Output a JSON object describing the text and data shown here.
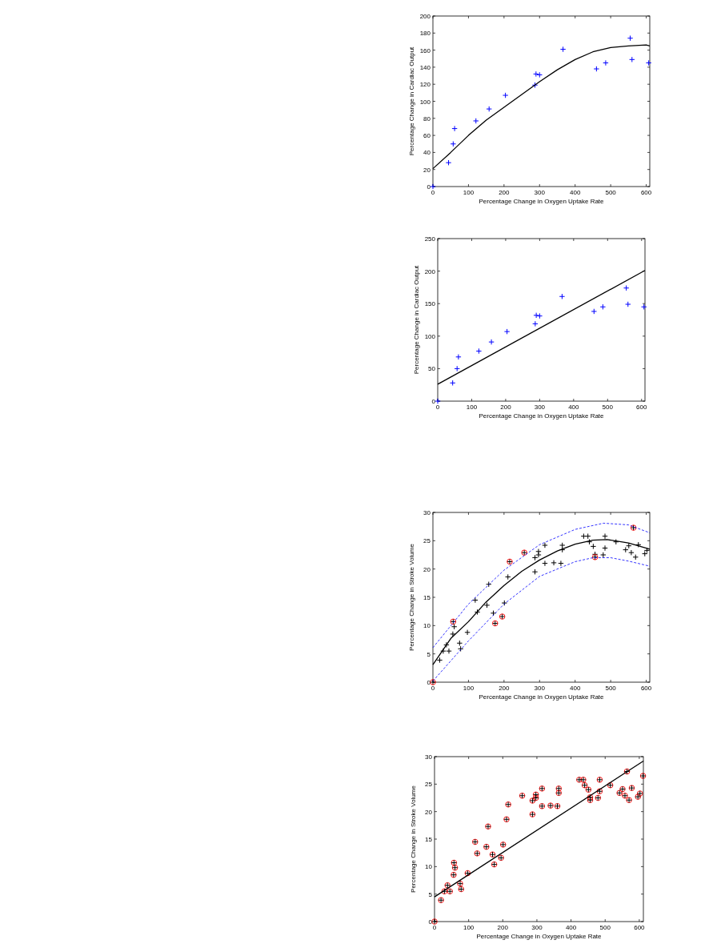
{
  "chart_data": [
    {
      "type": "scatter",
      "xlabel": "Percentage Change in Oxygen Uptake Rate",
      "ylabel": "Percentage Change in Cardiac Output",
      "xlim": [
        0,
        610
      ],
      "ylim": [
        0,
        200
      ],
      "xticks": [
        0,
        100,
        200,
        300,
        400,
        500,
        600
      ],
      "yticks": [
        0,
        20,
        40,
        60,
        80,
        100,
        120,
        140,
        160,
        180,
        200
      ],
      "grid": false,
      "series": [
        {
          "type": "scatter",
          "marker": "cross",
          "color": "#0000ff",
          "x": [
            0,
            44,
            57,
            61,
            121,
            158,
            204,
            287,
            290,
            300,
            366,
            460,
            486,
            555,
            560,
            607
          ],
          "values": [
            0,
            28,
            50,
            68,
            77,
            91,
            107,
            119,
            132,
            131,
            161,
            138,
            145,
            174,
            149,
            145
          ]
        },
        {
          "type": "line",
          "marker": "none",
          "line_style": "solid",
          "color": "#000000",
          "x": [
            0,
            50,
            100,
            150,
            200,
            250,
            300,
            350,
            400,
            450,
            500,
            550,
            600,
            610
          ],
          "values": [
            21,
            40,
            60,
            78,
            93,
            108,
            123,
            137,
            149,
            158,
            163,
            165,
            166,
            165
          ]
        }
      ]
    },
    {
      "type": "scatter",
      "xlabel": "Percentage Change in Oxygen Uptake Rate",
      "ylabel": "Percentage Change in Cardiac Output",
      "xlim": [
        0,
        610
      ],
      "ylim": [
        0,
        250
      ],
      "xticks": [
        0,
        100,
        200,
        300,
        400,
        500,
        600
      ],
      "yticks": [
        0,
        50,
        100,
        150,
        200,
        250
      ],
      "grid": false,
      "series": [
        {
          "type": "scatter",
          "marker": "cross",
          "color": "#0000ff",
          "x": [
            0,
            44,
            57,
            61,
            121,
            158,
            204,
            287,
            290,
            300,
            366,
            460,
            486,
            555,
            560,
            607
          ],
          "values": [
            0,
            28,
            50,
            68,
            77,
            91,
            107,
            119,
            132,
            131,
            161,
            138,
            145,
            174,
            149,
            145
          ]
        },
        {
          "type": "line",
          "marker": "none",
          "line_style": "solid",
          "color": "#000000",
          "x": [
            0,
            610
          ],
          "values": [
            26,
            201
          ]
        }
      ]
    },
    {
      "type": "scatter",
      "xlabel": "Percentage Change in Oxygen Uptake Rate",
      "ylabel": "Percentage Change in Stroke Volume",
      "xlim": [
        0,
        610
      ],
      "ylim": [
        0,
        30
      ],
      "xticks": [
        0,
        100,
        200,
        300,
        400,
        500,
        600
      ],
      "yticks": [
        0,
        5,
        10,
        15,
        20,
        25,
        30
      ],
      "grid": false,
      "series": [
        {
          "type": "scatter",
          "marker": "cross",
          "color": "#000000",
          "x": [
            0,
            19,
            29,
            38,
            45,
            56,
            60,
            57,
            75,
            78,
            97,
            119,
            125,
            152,
            157,
            170,
            175,
            195,
            201,
            211,
            216,
            257,
            287,
            287,
            297,
            297,
            315,
            315,
            340,
            360,
            364,
            364,
            424,
            436,
            440,
            451,
            456,
            456,
            479,
            484,
            484,
            515,
            542,
            551,
            558,
            564,
            570,
            578,
            596,
            602
          ],
          "values": [
            0,
            3.9,
            5.5,
            6.6,
            5.5,
            8.5,
            9.8,
            10.7,
            6.9,
            5.9,
            8.8,
            14.5,
            12.4,
            13.6,
            17.3,
            12.2,
            10.4,
            11.6,
            14.0,
            18.6,
            21.3,
            22.9,
            19.5,
            22.0,
            23.1,
            22.5,
            21.0,
            24.2,
            21.1,
            21.0,
            24.2,
            23.4,
            25.8,
            25.8,
            24.8,
            24.0,
            22.6,
            22.1,
            22.5,
            25.8,
            23.7,
            24.8,
            23.4,
            24.1,
            22.9,
            27.3,
            22.1,
            24.3,
            22.7,
            23.3
          ]
        },
        {
          "type": "scatter",
          "marker": "circle",
          "color": "#ff0000",
          "x": [
            0,
            57,
            175,
            195,
            216,
            257,
            456,
            564
          ],
          "values": [
            0,
            10.7,
            10.4,
            11.6,
            21.3,
            22.9,
            22.1,
            27.3
          ]
        },
        {
          "type": "line",
          "marker": "none",
          "line_style": "solid",
          "color": "#000000",
          "x": [
            0,
            50,
            100,
            150,
            200,
            250,
            300,
            350,
            400,
            450,
            490,
            550,
            610
          ],
          "values": [
            3.1,
            7.7,
            10.7,
            14.2,
            17.1,
            19.6,
            21.6,
            23.2,
            24.4,
            25.1,
            25.2,
            24.6,
            23.5
          ]
        },
        {
          "type": "line",
          "marker": "none",
          "line_style": "dashed",
          "color": "#0000ff",
          "x": [
            0,
            100,
            200,
            300,
            400,
            480,
            550,
            610
          ],
          "values": [
            6.1,
            13.8,
            19.8,
            24.3,
            27.0,
            28.1,
            27.8,
            26.4
          ]
        },
        {
          "type": "line",
          "marker": "none",
          "line_style": "dashed",
          "color": "#0000ff",
          "x": [
            0,
            100,
            200,
            300,
            400,
            450,
            500,
            550,
            610
          ],
          "values": [
            0.2,
            7.3,
            13.8,
            18.7,
            21.3,
            22.0,
            22.0,
            21.4,
            20.5
          ]
        }
      ]
    },
    {
      "type": "scatter",
      "xlabel": "Percentage Change in Oxygen Uptake Rate",
      "ylabel": "Percentage Change in Stroke Volume",
      "xlim": [
        0,
        612
      ],
      "ylim": [
        0,
        30
      ],
      "xticks": [
        0,
        100,
        200,
        300,
        400,
        500,
        600
      ],
      "yticks": [
        0,
        5,
        10,
        15,
        20,
        25,
        30
      ],
      "grid": false,
      "series": [
        {
          "type": "scatter",
          "marker": "circle",
          "color": "#ff0000",
          "x": [
            0,
            19,
            29,
            38,
            45,
            56,
            60,
            57,
            75,
            78,
            97,
            119,
            125,
            152,
            157,
            170,
            175,
            195,
            201,
            211,
            216,
            257,
            287,
            287,
            297,
            297,
            315,
            315,
            340,
            360,
            364,
            364,
            424,
            436,
            440,
            451,
            456,
            456,
            479,
            484,
            484,
            515,
            542,
            551,
            558,
            564,
            570,
            578,
            596,
            602,
            611
          ],
          "values": [
            0,
            3.9,
            5.5,
            6.6,
            5.5,
            8.5,
            9.8,
            10.7,
            6.9,
            5.9,
            8.8,
            14.5,
            12.4,
            13.6,
            17.3,
            12.2,
            10.4,
            11.6,
            14.0,
            18.6,
            21.3,
            22.9,
            19.5,
            22.0,
            23.1,
            22.5,
            21.0,
            24.2,
            21.1,
            21.0,
            24.2,
            23.4,
            25.8,
            25.8,
            24.8,
            24.0,
            22.6,
            22.1,
            22.5,
            25.8,
            23.7,
            24.8,
            23.4,
            24.1,
            22.9,
            27.3,
            22.1,
            24.3,
            22.7,
            23.3,
            26.5
          ]
        },
        {
          "type": "scatter",
          "marker": "cross",
          "color": "#000000",
          "x": [
            0,
            19,
            29,
            38,
            45,
            56,
            60,
            57,
            75,
            78,
            97,
            119,
            125,
            152,
            157,
            170,
            175,
            195,
            201,
            211,
            216,
            257,
            287,
            287,
            297,
            297,
            315,
            315,
            340,
            360,
            364,
            364,
            424,
            436,
            440,
            451,
            456,
            456,
            479,
            484,
            484,
            515,
            542,
            551,
            558,
            564,
            570,
            578,
            596,
            602,
            611
          ],
          "values": [
            0,
            3.9,
            5.5,
            6.6,
            5.5,
            8.5,
            9.8,
            10.7,
            6.9,
            5.9,
            8.8,
            14.5,
            12.4,
            13.6,
            17.3,
            12.2,
            10.4,
            11.6,
            14.0,
            18.6,
            21.3,
            22.9,
            19.5,
            22.0,
            23.1,
            22.5,
            21.0,
            24.2,
            21.1,
            21.0,
            24.2,
            23.4,
            25.8,
            25.8,
            24.8,
            24.0,
            22.6,
            22.1,
            22.5,
            25.8,
            23.7,
            24.8,
            23.4,
            24.1,
            22.9,
            27.3,
            22.1,
            24.3,
            22.7,
            23.3,
            26.5
          ]
        },
        {
          "type": "line",
          "marker": "none",
          "line_style": "solid",
          "color": "#000000",
          "x": [
            0,
            612
          ],
          "values": [
            4.5,
            29.2
          ]
        }
      ]
    }
  ]
}
